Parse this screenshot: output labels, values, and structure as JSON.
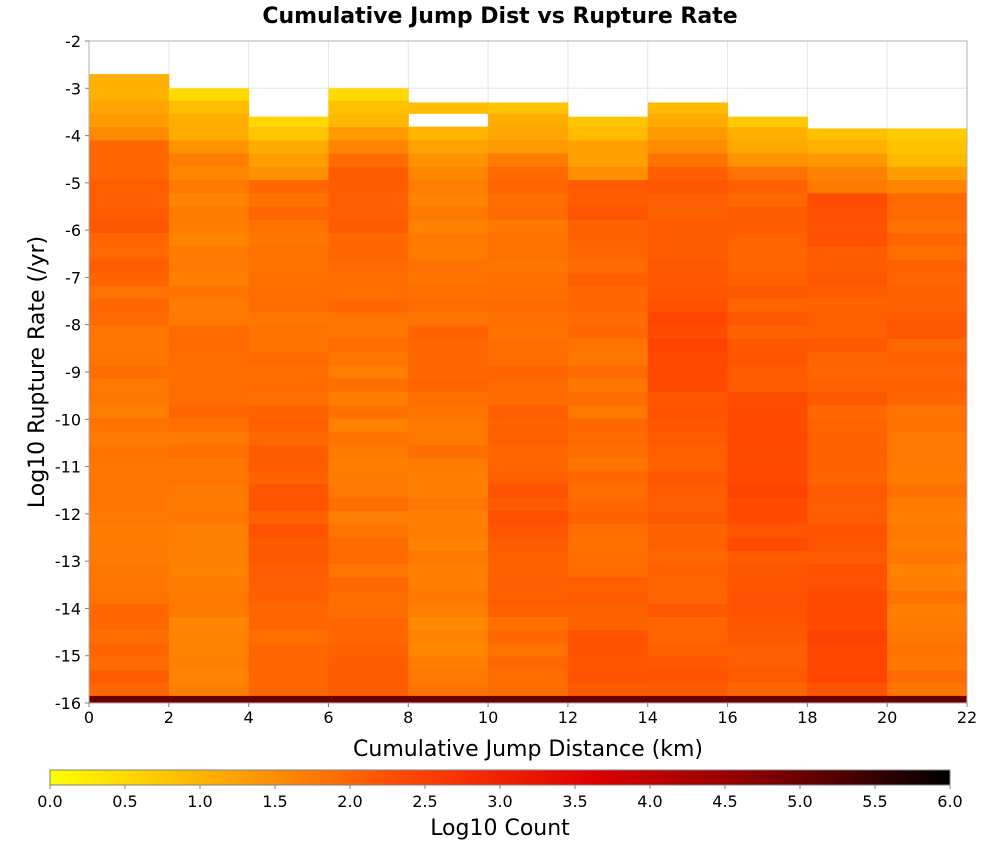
{
  "chart_data": {
    "type": "heatmap",
    "title": "Cumulative Jump Dist vs Rupture Rate",
    "xlabel": "Cumulative Jump Distance (km)",
    "ylabel": "Log10 Rupture Rate (/yr)",
    "colorbar_label": "Log10 Count",
    "xlim": [
      0,
      22
    ],
    "ylim": [
      -16,
      -2
    ],
    "x_ticks": [
      0,
      2,
      4,
      6,
      8,
      10,
      12,
      14,
      16,
      18,
      20,
      22
    ],
    "y_ticks": [
      -2,
      -3,
      -4,
      -5,
      -6,
      -7,
      -8,
      -9,
      -10,
      -11,
      -12,
      -13,
      -14,
      -15,
      -16
    ],
    "colorbar_range": [
      0.0,
      6.0
    ],
    "colorbar_ticks": [
      0.0,
      0.5,
      1.0,
      1.5,
      2.0,
      2.5,
      3.0,
      3.5,
      4.0,
      4.5,
      5.0,
      5.5,
      6.0
    ],
    "colormap": [
      "#ffff00",
      "#ffa500",
      "#ff4500",
      "#e00000",
      "#800000",
      "#000000"
    ],
    "grid": true,
    "x_bin_edges": [
      0,
      2,
      4,
      6,
      8,
      10,
      12,
      14,
      16,
      18,
      20,
      22
    ],
    "y_bin_size": 0.28,
    "y_bottom": -16,
    "top_values": [
      -2.7,
      -3.0,
      -3.6,
      -3.0,
      -3.3,
      -3.3,
      -3.6,
      -3.3,
      -3.6,
      -3.85,
      -3.85
    ],
    "top_counts": [
      1.0,
      0.6,
      0.6,
      0.6,
      0.8,
      0.9,
      0.8,
      0.9,
      0.8,
      0.9,
      0.6
    ],
    "peak_counts": [
      2.1,
      2.0,
      2.2,
      2.1,
      2.0,
      2.2,
      2.2,
      2.4,
      2.4,
      2.4,
      2.1
    ],
    "bottom_row": {
      "y_range": [
        -16.0,
        -15.85
      ],
      "count": 5.0
    }
  }
}
